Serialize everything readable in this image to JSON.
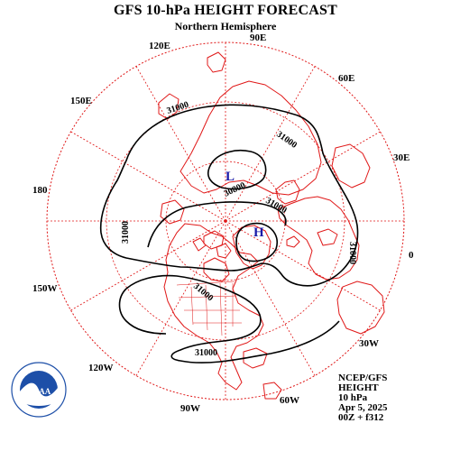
{
  "title": "GFS 10-hPa HEIGHT FORECAST",
  "subtitle": "Northern Hemisphere",
  "meridian_labels": {
    "m90E": "90E",
    "m60E": "60E",
    "m30E": "30E",
    "m0": "0",
    "m30W": "30W",
    "m60W": "60W",
    "m90W": "90W",
    "m120W": "120W",
    "m150W": "150W",
    "m180": "180",
    "m150E": "150E",
    "m120E": "120E"
  },
  "contour_labels": {
    "c1": "31000",
    "c2": "31000",
    "c3": "30800",
    "c4": "31000",
    "c5": "31000",
    "c6": "31000",
    "c7": "31000",
    "c8": "31000"
  },
  "pressure_centers": {
    "low": "L",
    "high": "H"
  },
  "info": {
    "line1": "NCEP/GFS",
    "line2": "HEIGHT",
    "line3": "10 hPa",
    "line4": "Apr 5, 2025",
    "line5": "00Z + f312"
  },
  "logo_text": "NOAA",
  "colors": {
    "coastline": "#e01818",
    "grid": "#e01818",
    "contour": "#000000",
    "center_label": "#1a1aa8",
    "noaa_blue": "#1d4fa8"
  }
}
